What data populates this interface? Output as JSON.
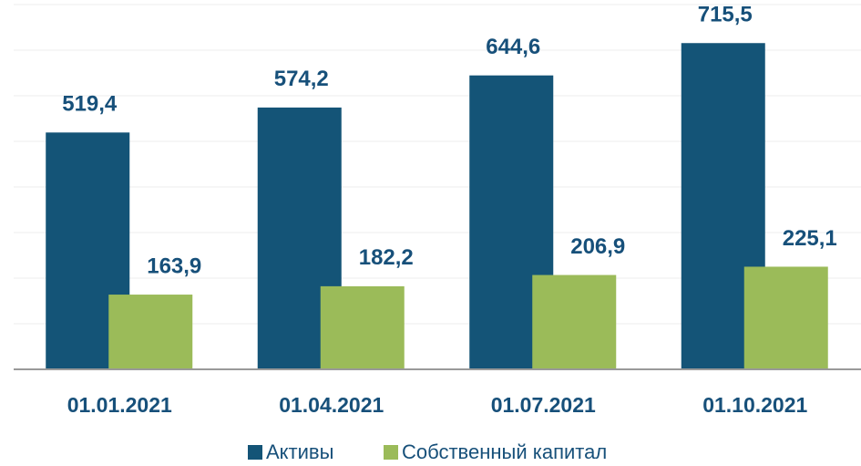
{
  "chart_data": {
    "type": "bar",
    "categories": [
      "01.01.2021",
      "01.04.2021",
      "01.07.2021",
      "01.10.2021"
    ],
    "series": [
      {
        "name": "Активы",
        "color": "#145477",
        "values": [
          519.4,
          574.2,
          644.6,
          715.5
        ],
        "value_labels": [
          "519,4",
          "574,2",
          "644,6",
          "715,5"
        ]
      },
      {
        "name": "Собственный капитал",
        "color": "#9bbb59",
        "values": [
          163.9,
          182.2,
          206.9,
          225.1
        ],
        "value_labels": [
          "163,9",
          "182,2",
          "206,9",
          "225,1"
        ]
      }
    ],
    "ylim": [
      0,
      800
    ],
    "yticks": [
      0,
      100,
      200,
      300,
      400,
      500,
      600,
      700,
      800
    ],
    "grid": true,
    "legend": "bottom"
  }
}
